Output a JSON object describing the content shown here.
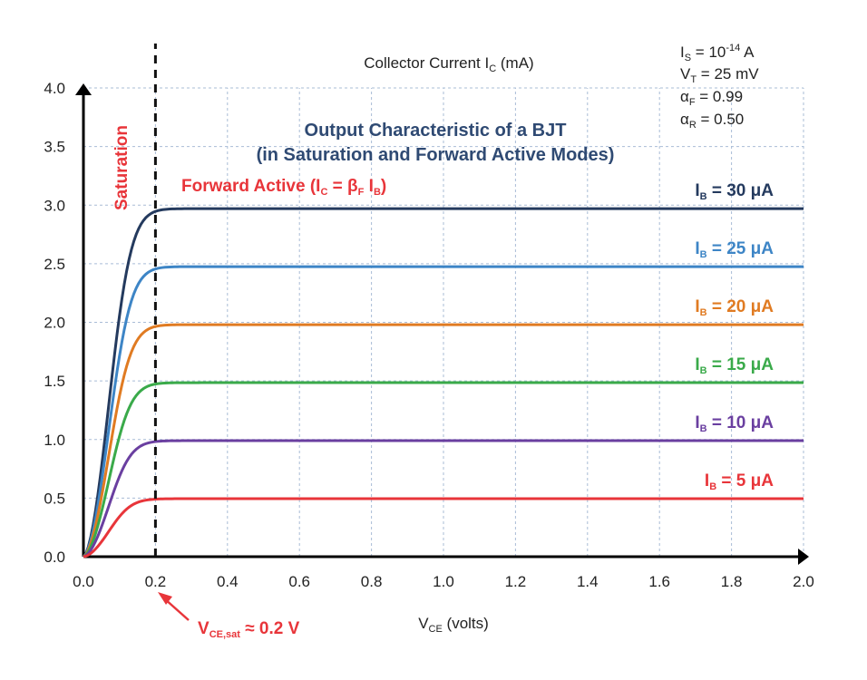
{
  "chart_data": {
    "type": "line",
    "title_line1": "Output Characteristic of a BJT",
    "title_line2": "(in Saturation and Forward Active Modes)",
    "xlabel": {
      "main": "V",
      "sub": "CE",
      "rest": " (volts)"
    },
    "ylabel": {
      "main": "Collector Current I",
      "sub": "C",
      "rest": " (mA)"
    },
    "xlim": [
      0,
      2.0
    ],
    "ylim": [
      0,
      4.0
    ],
    "x_ticks": [
      "0.0",
      "0.2",
      "0.4",
      "0.6",
      "0.8",
      "1.0",
      "1.2",
      "1.4",
      "1.6",
      "1.8",
      "2.0"
    ],
    "y_ticks": [
      "0.0",
      "0.5",
      "1.0",
      "1.5",
      "2.0",
      "2.5",
      "3.0",
      "3.5",
      "4.0"
    ],
    "x_tick_values": [
      0,
      0.2,
      0.4,
      0.6,
      0.8,
      1.0,
      1.2,
      1.4,
      1.6,
      1.8,
      2.0
    ],
    "y_tick_values": [
      0,
      0.5,
      1.0,
      1.5,
      2.0,
      2.5,
      3.0,
      3.5,
      4.0
    ],
    "grid": true,
    "vce_sat": 0.2,
    "saturation_label": "Saturation",
    "forward_active_label": {
      "text": "Forward Active (I",
      "sub1": "C",
      "mid": " = β",
      "sub2": "F",
      "mid2": " I",
      "sub3": "B",
      "end": ")"
    },
    "vce_sat_label": {
      "main": "V",
      "sub": "CE,sat",
      "rest": " ≈ 0.2 V"
    },
    "params": [
      {
        "main": "I",
        "sub": "S",
        "sup": "-14",
        "pre": " = 10",
        "rest": " A"
      },
      {
        "main": "V",
        "sub": "T",
        "rest": " = 25 mV"
      },
      {
        "main": "α",
        "sub": "F",
        "rest": " = 0.99"
      },
      {
        "main": "α",
        "sub": "R",
        "rest": " = 0.50"
      }
    ],
    "series": [
      {
        "name_main": "I",
        "name_sub": "B",
        "name_rest": " = 30 μA",
        "ic_max": 2.97,
        "color": "#243a5e"
      },
      {
        "name_main": "I",
        "name_sub": "B",
        "name_rest": " = 25 μA",
        "ic_max": 2.475,
        "color": "#3d85c6"
      },
      {
        "name_main": "I",
        "name_sub": "B",
        "name_rest": " = 20 μA",
        "ic_max": 1.98,
        "color": "#e07b22"
      },
      {
        "name_main": "I",
        "name_sub": "B",
        "name_rest": " = 15 μA",
        "ic_max": 1.485,
        "color": "#3aaa4a"
      },
      {
        "name_main": "I",
        "name_sub": "B",
        "name_rest": " = 10 μA",
        "ic_max": 0.99,
        "color": "#6a3fa0"
      },
      {
        "name_main": "I",
        "name_sub": "B",
        "name_rest": " = 5 μA",
        "ic_max": 0.495,
        "color": "#e8353a"
      }
    ]
  }
}
